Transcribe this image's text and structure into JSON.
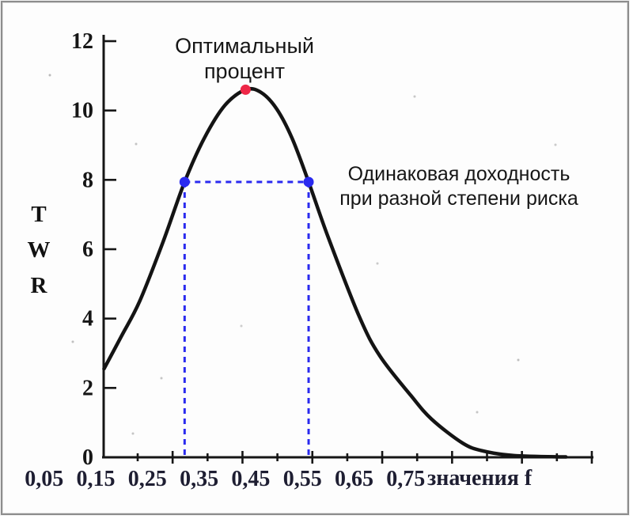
{
  "chart_data": {
    "type": "line",
    "title_lines": [
      "Оптимальный",
      "процент"
    ],
    "annotation_lines": [
      "Одинаковая доходность",
      "при разной степени риска"
    ],
    "ylabel": "TWR",
    "ylabel_letters": [
      "T",
      "W",
      "R"
    ],
    "xlabel": "значения f",
    "axis_color": "#161616",
    "x_axis": {
      "tick_labels": [
        "0,05",
        "0,15",
        "0,25",
        "0,35",
        "0,45",
        "0,55",
        "0,65",
        "0,75"
      ],
      "tick_values": [
        0.05,
        0.15,
        0.25,
        0.35,
        0.45,
        0.55,
        0.65,
        0.75
      ],
      "range": [
        0.05,
        1.1
      ]
    },
    "y_axis": {
      "tick_values": [
        0,
        2,
        4,
        6,
        8,
        10,
        12
      ],
      "range": [
        0,
        12
      ]
    },
    "curve": {
      "color": "#141414",
      "points": [
        [
          0.166,
          2.55
        ],
        [
          0.2,
          3.5
        ],
        [
          0.235,
          4.5
        ],
        [
          0.28,
          6.2
        ],
        [
          0.322,
          7.94
        ],
        [
          0.36,
          9.2
        ],
        [
          0.4,
          10.15
        ],
        [
          0.44,
          10.6
        ],
        [
          0.47,
          10.52
        ],
        [
          0.5,
          10.05
        ],
        [
          0.53,
          9.2
        ],
        [
          0.562,
          7.94
        ],
        [
          0.6,
          6.34
        ],
        [
          0.66,
          4.06
        ],
        [
          0.7,
          2.92
        ],
        [
          0.76,
          1.78
        ],
        [
          0.8,
          1.1
        ],
        [
          0.86,
          0.41
        ],
        [
          0.9,
          0.18
        ],
        [
          0.96,
          0.05
        ],
        [
          1.06,
          0.01
        ]
      ]
    },
    "optimal_point": {
      "f": 0.44,
      "twr": 10.6,
      "color": "#ee2747"
    },
    "equal_return": {
      "twr": 7.94,
      "f_values": [
        0.322,
        0.562
      ],
      "color": "#2a2aef"
    }
  }
}
